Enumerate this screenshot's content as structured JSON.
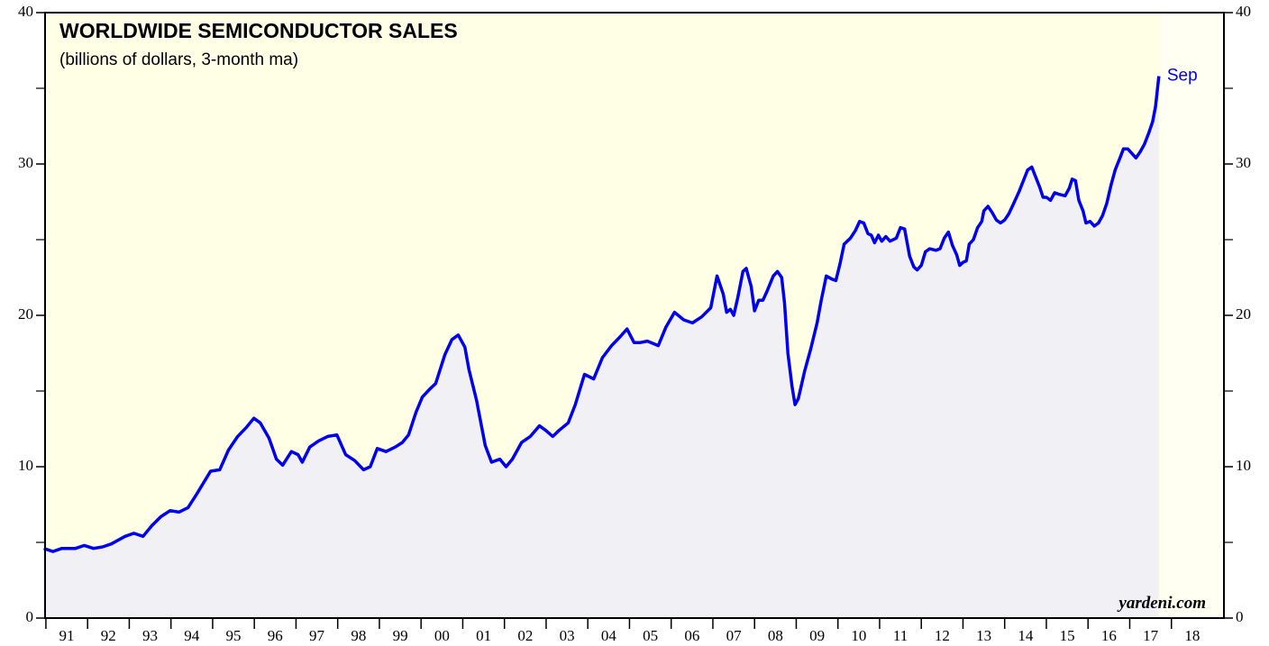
{
  "chart_data": {
    "type": "line",
    "title": "WORLDWIDE SEMICONDUCTOR SALES",
    "subtitle": "(billions of dollars, 3-month ma)",
    "end_label": "Sep",
    "source": "yardeni.com",
    "color": "#0000ee",
    "area_color": "#f1f1f5",
    "background": "#ffffe6",
    "x": [
      1990.95,
      1991.17,
      1991.38,
      1991.71,
      1991.92,
      1992.14,
      1992.36,
      1992.57,
      1992.9,
      1993.11,
      1993.33,
      1993.54,
      1993.76,
      1993.98,
      1994.19,
      1994.41,
      1994.62,
      1994.95,
      1995.17,
      1995.38,
      1995.6,
      1995.81,
      1995.99,
      1996.14,
      1996.35,
      1996.53,
      1996.68,
      1996.89,
      1997.05,
      1997.15,
      1997.33,
      1997.54,
      1997.76,
      1997.98,
      1998.19,
      1998.41,
      1998.62,
      1998.78,
      1998.95,
      1999.16,
      1999.38,
      1999.55,
      1999.7,
      1999.88,
      2000.03,
      2000.2,
      2000.35,
      2000.57,
      2000.74,
      2000.89,
      2001.05,
      2001.15,
      2001.33,
      2001.54,
      2001.69,
      2001.89,
      2002.04,
      2002.19,
      2002.41,
      2002.62,
      2002.84,
      2002.99,
      2003.16,
      2003.31,
      2003.53,
      2003.7,
      2003.92,
      2004.14,
      2004.35,
      2004.57,
      2004.78,
      2004.94,
      2005.11,
      2005.26,
      2005.43,
      2005.69,
      2005.87,
      2006.08,
      2006.3,
      2006.51,
      2006.73,
      2006.95,
      2007.1,
      2007.25,
      2007.33,
      2007.42,
      2007.5,
      2007.6,
      2007.72,
      2007.8,
      2007.92,
      2008.0,
      2008.1,
      2008.2,
      2008.3,
      2008.45,
      2008.55,
      2008.65,
      2008.72,
      2008.8,
      2008.9,
      2008.97,
      2009.05,
      2009.2,
      2009.35,
      2009.5,
      2009.6,
      2009.72,
      2009.85,
      2009.95,
      2010.05,
      2010.15,
      2010.3,
      2010.42,
      2010.52,
      2010.62,
      2010.72,
      2010.8,
      2010.88,
      2010.97,
      2011.05,
      2011.15,
      2011.25,
      2011.4,
      2011.5,
      2011.6,
      2011.72,
      2011.82,
      2011.9,
      2012.0,
      2012.1,
      2012.2,
      2012.35,
      2012.45,
      2012.55,
      2012.65,
      2012.75,
      2012.85,
      2012.92,
      2013.0,
      2013.08,
      2013.15,
      2013.25,
      2013.35,
      2013.45,
      2013.5,
      2013.6,
      2013.7,
      2013.8,
      2013.9,
      2014.0,
      2014.1,
      2014.2,
      2014.35,
      2014.45,
      2014.55,
      2014.65,
      2014.75,
      2014.85,
      2014.92,
      2015.0,
      2015.1,
      2015.2,
      2015.3,
      2015.45,
      2015.55,
      2015.62,
      2015.7,
      2015.78,
      2015.88,
      2015.95,
      2016.05,
      2016.15,
      2016.25,
      2016.35,
      2016.45,
      2016.55,
      2016.65,
      2016.78,
      2016.85,
      2016.95,
      2017.05,
      2017.15,
      2017.25,
      2017.35,
      2017.45,
      2017.55,
      2017.62,
      2017.7
    ],
    "values": [
      4.6,
      4.4,
      4.6,
      4.6,
      4.8,
      4.6,
      4.7,
      4.9,
      5.4,
      5.6,
      5.4,
      6.1,
      6.7,
      7.1,
      7.0,
      7.3,
      8.2,
      9.7,
      9.8,
      11.1,
      12.0,
      12.6,
      13.2,
      12.9,
      11.9,
      10.5,
      10.1,
      11.0,
      10.8,
      10.3,
      11.3,
      11.7,
      12.0,
      12.1,
      10.8,
      10.4,
      9.8,
      10.0,
      11.2,
      11.0,
      11.3,
      11.6,
      12.1,
      13.6,
      14.6,
      15.1,
      15.5,
      17.4,
      18.4,
      18.7,
      17.9,
      16.4,
      14.4,
      11.4,
      10.3,
      10.5,
      10.0,
      10.5,
      11.6,
      12.0,
      12.7,
      12.4,
      12.0,
      12.4,
      12.9,
      14.1,
      16.1,
      15.8,
      17.2,
      18.0,
      18.6,
      19.1,
      18.2,
      18.2,
      18.3,
      18.0,
      19.2,
      20.2,
      19.7,
      19.5,
      19.9,
      20.5,
      22.6,
      21.4,
      20.2,
      20.4,
      20.0,
      21.2,
      22.9,
      23.1,
      21.9,
      20.3,
      21.0,
      21.0,
      21.6,
      22.6,
      22.9,
      22.5,
      20.8,
      17.5,
      15.3,
      14.1,
      14.5,
      16.3,
      17.8,
      19.5,
      21.0,
      22.6,
      22.4,
      22.3,
      23.4,
      24.7,
      25.1,
      25.6,
      26.2,
      26.1,
      25.4,
      25.3,
      24.8,
      25.3,
      24.9,
      25.2,
      24.9,
      25.1,
      25.8,
      25.7,
      23.9,
      23.2,
      23.0,
      23.3,
      24.2,
      24.4,
      24.3,
      24.4,
      25.1,
      25.5,
      24.6,
      24.0,
      23.3,
      23.5,
      23.6,
      24.7,
      25.0,
      25.8,
      26.2,
      26.9,
      27.2,
      26.8,
      26.3,
      26.1,
      26.3,
      26.7,
      27.3,
      28.2,
      28.9,
      29.6,
      29.8,
      29.1,
      28.4,
      27.8,
      27.8,
      27.6,
      28.1,
      28.0,
      27.9,
      28.4,
      29.0,
      28.9,
      27.6,
      26.9,
      26.1,
      26.2,
      25.9,
      26.1,
      26.6,
      27.4,
      28.6,
      29.6,
      30.5,
      31.0,
      31.0,
      30.7,
      30.4,
      30.8,
      31.3,
      32.0,
      32.8,
      33.8,
      35.8
    ],
    "xlim": [
      1990.98,
      2019.26
    ],
    "xticks": [
      {
        "value": 1991.5,
        "label": "91"
      },
      {
        "value": 1992.5,
        "label": "92"
      },
      {
        "value": 1993.5,
        "label": "93"
      },
      {
        "value": 1994.5,
        "label": "94"
      },
      {
        "value": 1995.5,
        "label": "95"
      },
      {
        "value": 1996.5,
        "label": "96"
      },
      {
        "value": 1997.5,
        "label": "97"
      },
      {
        "value": 1998.5,
        "label": "98"
      },
      {
        "value": 1999.5,
        "label": "99"
      },
      {
        "value": 2000.5,
        "label": "00"
      },
      {
        "value": 2001.5,
        "label": "01"
      },
      {
        "value": 2002.5,
        "label": "02"
      },
      {
        "value": 2003.5,
        "label": "03"
      },
      {
        "value": 2004.5,
        "label": "04"
      },
      {
        "value": 2005.5,
        "label": "05"
      },
      {
        "value": 2006.5,
        "label": "06"
      },
      {
        "value": 2007.5,
        "label": "07"
      },
      {
        "value": 2008.5,
        "label": "08"
      },
      {
        "value": 2009.5,
        "label": "09"
      },
      {
        "value": 2010.5,
        "label": "10"
      },
      {
        "value": 2011.5,
        "label": "11"
      },
      {
        "value": 2012.5,
        "label": "12"
      },
      {
        "value": 2013.5,
        "label": "13"
      },
      {
        "value": 2014.5,
        "label": "14"
      },
      {
        "value": 2015.5,
        "label": "15"
      },
      {
        "value": 2016.5,
        "label": "16"
      },
      {
        "value": 2017.5,
        "label": "17"
      },
      {
        "value": 2018.5,
        "label": "18"
      }
    ],
    "ylim": [
      0,
      40
    ],
    "yticks": [
      0,
      10,
      20,
      30,
      40
    ],
    "minor_yticks": [
      5,
      15,
      25,
      35
    ],
    "y2lim": [
      0,
      40
    ],
    "y2ticks": [
      0,
      10,
      20,
      30,
      40
    ]
  }
}
